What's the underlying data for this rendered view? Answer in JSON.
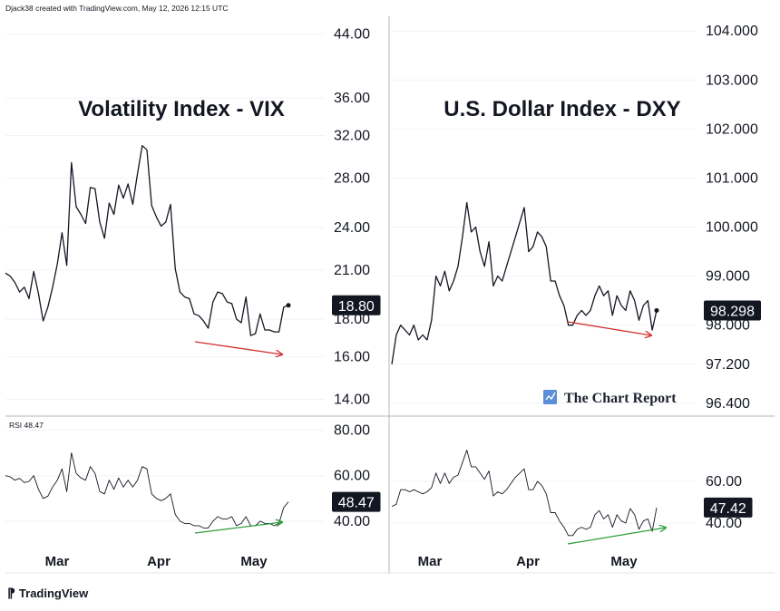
{
  "header": {
    "text": "Djack38 created with TradingView.com, May 12, 2026 12:15 UTC"
  },
  "footer": {
    "logo_text": "TradingView"
  },
  "colors": {
    "line": "#131722",
    "grid": "#e6e6e6",
    "divider": "#b2b5be",
    "badge_bg": "#131722",
    "badge_text": "#ffffff",
    "down_arrow": "#d32f2f",
    "up_arrow": "#2e9e3a",
    "brand_icon": "#5b8fd9"
  },
  "chart_data": [
    {
      "panel": "vix-price",
      "type": "line",
      "title": "Volatility Index - VIX",
      "scale": "log",
      "ylim": [
        13.4,
        46.5
      ],
      "yticks": [
        "44.00",
        "36.00",
        "32.00",
        "28.00",
        "24.00",
        "21.00",
        "18.00",
        "16.00",
        "14.00"
      ],
      "last_value_label": "18.80",
      "series": [
        {
          "values": [
            20.8,
            20.6,
            20.2,
            19.6,
            19.9,
            19.2,
            20.9,
            19.5,
            17.9,
            18.7,
            19.9,
            21.4,
            23.6,
            21.3,
            29.4,
            25.6,
            25.0,
            24.3,
            27.2,
            27.1,
            24.4,
            23.2,
            25.9,
            25.0,
            27.4,
            26.3,
            27.5,
            25.8,
            28.4,
            31.0,
            30.6,
            25.7,
            24.8,
            24.1,
            24.4,
            25.8,
            21.1,
            19.6,
            19.3,
            19.2,
            18.3,
            18.2,
            17.9,
            17.5,
            19.0,
            19.6,
            19.5,
            19.0,
            18.9,
            18.0,
            17.8,
            19.3,
            17.1,
            17.2,
            18.3,
            17.4,
            17.4,
            17.3,
            17.3,
            18.7,
            18.8
          ]
        }
      ],
      "annotation": {
        "type": "arrow",
        "direction": "down",
        "color": "red"
      }
    },
    {
      "panel": "vix-rsi",
      "type": "line",
      "title": "RSI 48.47",
      "ylim": [
        30,
        85
      ],
      "yticks": [
        "80.00",
        "60.00",
        "40.00"
      ],
      "last_value_label": "48.47",
      "series": [
        {
          "values": [
            60,
            59.5,
            58,
            58.8,
            57,
            57.5,
            60,
            54,
            50,
            51,
            55,
            58,
            63,
            53,
            70,
            61,
            59,
            58,
            64,
            61,
            53,
            52,
            58,
            54,
            59,
            55,
            58,
            55,
            58,
            64,
            63,
            52,
            50,
            49,
            50,
            52,
            43,
            40,
            39,
            39,
            38,
            38,
            37,
            37,
            40,
            42,
            41,
            41,
            42,
            38,
            39,
            42,
            38,
            38,
            40,
            39,
            39,
            38,
            39,
            46,
            48.5
          ]
        }
      ],
      "annotation": {
        "type": "arrow",
        "direction": "up",
        "color": "green"
      }
    },
    {
      "panel": "dxy-price",
      "type": "line",
      "title": "U.S. Dollar Index - DXY",
      "ylim": [
        96.2,
        104.3
      ],
      "yticks": [
        "104.000",
        "103.000",
        "102.000",
        "101.000",
        "100.000",
        "99.000",
        "98.000",
        "97.200",
        "96.400"
      ],
      "last_value_label": "98.298",
      "series": [
        {
          "values": [
            97.2,
            97.8,
            98.0,
            97.9,
            97.8,
            98.0,
            97.7,
            97.8,
            97.7,
            98.1,
            99.0,
            98.8,
            99.1,
            98.7,
            98.9,
            99.2,
            99.8,
            100.5,
            99.9,
            100.0,
            99.5,
            99.2,
            99.7,
            98.8,
            99.0,
            98.9,
            99.2,
            99.5,
            99.8,
            100.1,
            100.4,
            99.5,
            99.6,
            99.9,
            99.8,
            99.6,
            98.9,
            98.9,
            98.6,
            98.4,
            98.0,
            98.0,
            98.2,
            98.3,
            98.2,
            98.3,
            98.6,
            98.8,
            98.6,
            98.7,
            98.2,
            98.6,
            98.4,
            98.3,
            98.7,
            98.5,
            98.1,
            98.4,
            98.5,
            97.9,
            98.3
          ]
        }
      ],
      "annotation": {
        "type": "arrow",
        "direction": "down",
        "color": "red"
      }
    },
    {
      "panel": "dxy-rsi",
      "type": "line",
      "ylim": [
        30,
        90
      ],
      "yticks": [
        "60.00",
        "40.00"
      ],
      "last_value_label": "47.42",
      "series": [
        {
          "values": [
            48,
            49,
            56,
            56,
            55,
            56,
            55,
            54,
            55,
            57,
            64,
            59,
            64,
            59,
            62,
            63,
            69,
            75,
            67,
            67,
            64,
            61,
            65,
            53,
            55,
            54,
            56,
            59,
            62,
            64,
            66,
            56,
            56,
            60,
            58,
            54,
            45,
            45,
            41,
            38,
            34,
            34,
            37,
            38,
            37,
            38,
            44,
            46,
            42,
            44,
            38,
            44,
            41,
            40,
            47,
            44,
            37,
            41,
            42,
            36,
            47.4
          ]
        }
      ],
      "annotation": {
        "type": "arrow",
        "direction": "up",
        "color": "green"
      }
    }
  ],
  "x_axis": {
    "labels": [
      "Mar",
      "Apr",
      "May"
    ]
  },
  "watermark": {
    "text": "The Chart Report",
    "icon": "chart-report-icon"
  }
}
